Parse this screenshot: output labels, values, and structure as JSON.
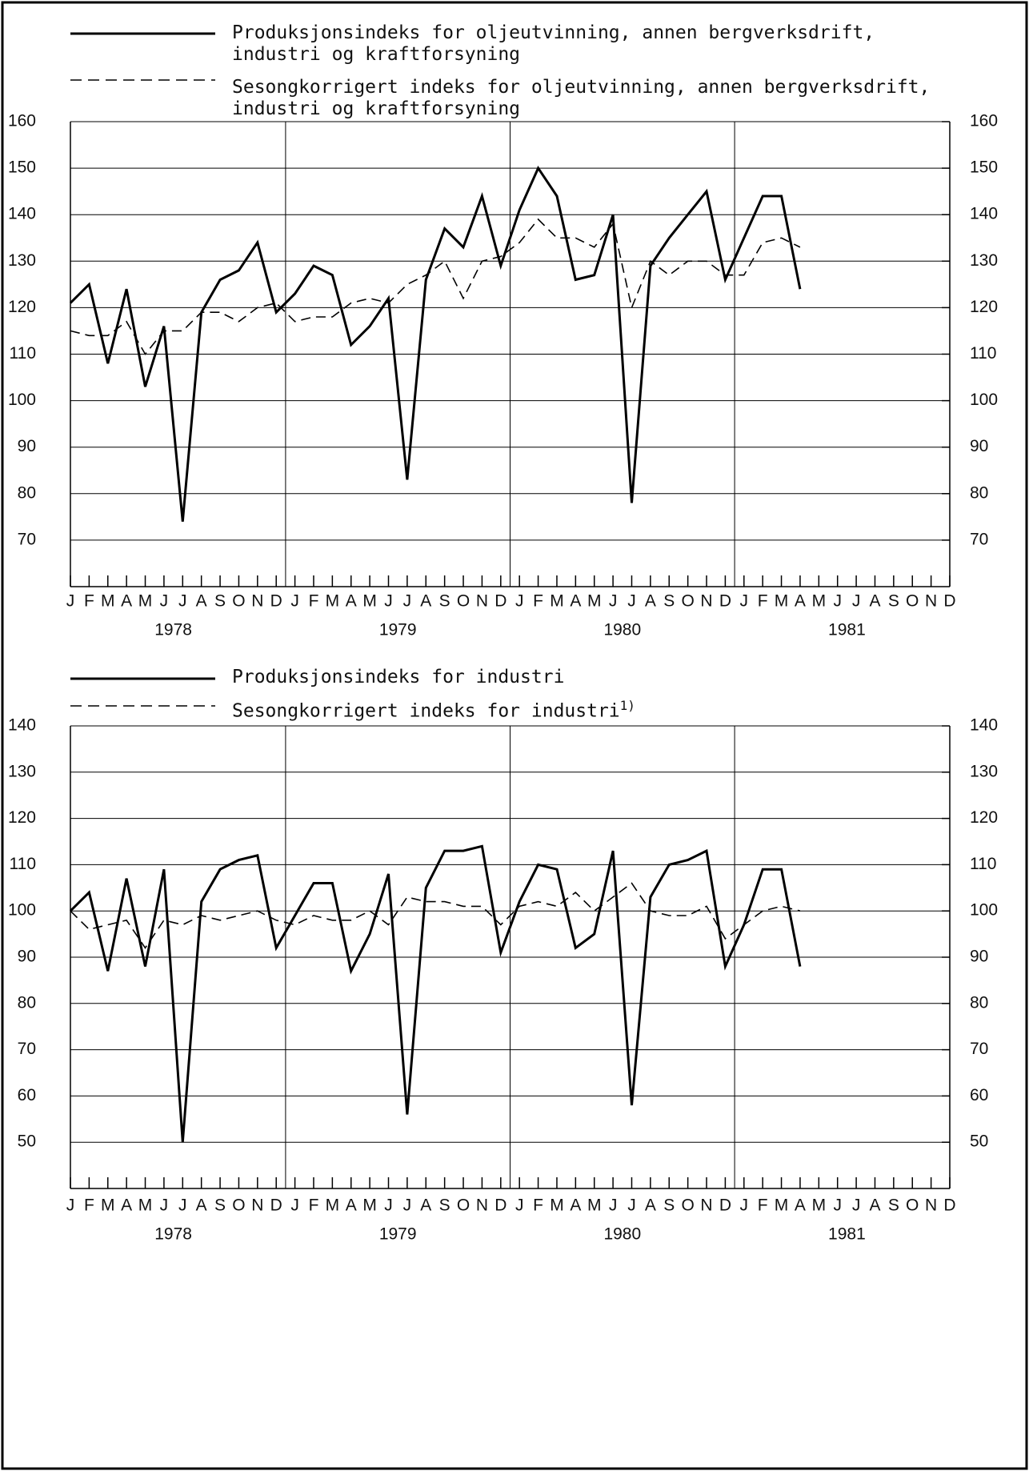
{
  "chart_data": [
    {
      "type": "line",
      "categories": [
        "J",
        "F",
        "M",
        "A",
        "M",
        "J",
        "J",
        "A",
        "S",
        "O",
        "N",
        "D",
        "J",
        "F",
        "M",
        "A",
        "M",
        "J",
        "J",
        "A",
        "S",
        "O",
        "N",
        "D",
        "J",
        "F",
        "M",
        "A",
        "M",
        "J",
        "J",
        "A",
        "S",
        "O",
        "N",
        "D",
        "J",
        "F",
        "M",
        "A",
        "M",
        "J",
        "J",
        "A",
        "S",
        "O",
        "N",
        "D"
      ],
      "years": [
        "1978",
        "1979",
        "1980",
        "1981"
      ],
      "ylim": [
        60,
        160
      ],
      "yticks": [
        70,
        80,
        90,
        100,
        110,
        120,
        130,
        140,
        150,
        160
      ],
      "grid": true,
      "series": [
        {
          "name": "Produksjonsindeks for oljeutvinning, annen bergverksdrift, industri og kraftforsyning",
          "color": "#000000",
          "dash": false,
          "values": [
            121,
            125,
            108,
            124,
            103,
            116,
            74,
            119,
            126,
            128,
            134,
            119,
            123,
            129,
            127,
            112,
            116,
            122,
            83,
            126,
            137,
            133,
            144,
            129,
            141,
            150,
            144,
            126,
            127,
            140,
            78,
            129,
            135,
            140,
            145,
            126,
            135,
            144,
            144,
            124,
            null,
            null,
            null,
            null,
            null,
            null,
            null,
            null
          ]
        },
        {
          "name": "Sesongkorrigert indeks for oljeutvinning, annen bergverksdrift, industri og kraftforsyning",
          "color": "#000000",
          "dash": true,
          "values": [
            115,
            114,
            114,
            117,
            110,
            115,
            115,
            119,
            119,
            117,
            120,
            121,
            117,
            118,
            118,
            121,
            122,
            121,
            125,
            127,
            130,
            122,
            130,
            131,
            134,
            139,
            135,
            135,
            133,
            138,
            120,
            130,
            127,
            130,
            130,
            127,
            127,
            134,
            135,
            133,
            null,
            null,
            null,
            null,
            null,
            null,
            null,
            null
          ]
        }
      ]
    },
    {
      "type": "line",
      "categories": [
        "J",
        "F",
        "M",
        "A",
        "M",
        "J",
        "J",
        "A",
        "S",
        "O",
        "N",
        "D",
        "J",
        "F",
        "M",
        "A",
        "M",
        "J",
        "J",
        "A",
        "S",
        "O",
        "N",
        "D",
        "J",
        "F",
        "M",
        "A",
        "M",
        "J",
        "J",
        "A",
        "S",
        "O",
        "N",
        "D",
        "J",
        "F",
        "M",
        "A",
        "M",
        "J",
        "J",
        "A",
        "S",
        "O",
        "N",
        "D"
      ],
      "years": [
        "1978",
        "1979",
        "1980",
        "1981"
      ],
      "ylim": [
        40,
        140
      ],
      "yticks": [
        50,
        60,
        70,
        80,
        90,
        100,
        110,
        120,
        130,
        140
      ],
      "grid": true,
      "footnote_mark": "1)",
      "series": [
        {
          "name": "Produksjonsindeks for industri",
          "color": "#000000",
          "dash": false,
          "values": [
            100,
            104,
            87,
            107,
            88,
            109,
            50,
            102,
            109,
            111,
            112,
            92,
            99,
            106,
            106,
            87,
            95,
            108,
            56,
            105,
            113,
            113,
            114,
            91,
            102,
            110,
            109,
            92,
            95,
            113,
            58,
            103,
            110,
            111,
            113,
            88,
            97,
            109,
            109,
            88,
            null,
            null,
            null,
            null,
            null,
            null,
            null,
            null
          ]
        },
        {
          "name": "Sesongkorrigert indeks for industri",
          "color": "#000000",
          "dash": true,
          "values": [
            100,
            96,
            97,
            98,
            92,
            98,
            97,
            99,
            98,
            99,
            100,
            98,
            97,
            99,
            98,
            98,
            100,
            97,
            103,
            102,
            102,
            101,
            101,
            97,
            101,
            102,
            101,
            104,
            100,
            103,
            106,
            100,
            99,
            99,
            101,
            94,
            97,
            100,
            101,
            100,
            null,
            null,
            null,
            null,
            null,
            null,
            null,
            null
          ]
        }
      ]
    }
  ]
}
